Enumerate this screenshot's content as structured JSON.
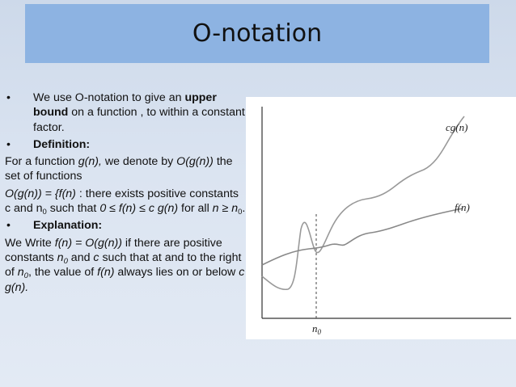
{
  "slide": {
    "title": "O-notation"
  },
  "content": {
    "bullet1": {
      "marker": "•",
      "t1": "We use O-notation to give an ",
      "bold": "upper bound",
      "t2": " on a function , to within a constant factor."
    },
    "bullet2": {
      "marker": "•",
      "label": "Definition:"
    },
    "def_line": {
      "t1": "For a function ",
      "gn": "g(n),",
      "t2": " we denote by ",
      "ogn": "O(g(n))",
      "t3": " the set of functions"
    },
    "set_def": {
      "lhs": "O(g(n)) = {f(n)",
      "t1": " : there exists positive constants c and n",
      "sub0": "0",
      "t2": " such that ",
      "ineq": "0 ≤ f(n)  ≤  c g(n)",
      "t3": " for all ",
      "n_ge": "n ≥ n",
      "sub0b": "0",
      "t4": "."
    },
    "bullet3": {
      "marker": "•",
      "label": "Explanation:"
    },
    "explanation": {
      "t1": "We Write ",
      "eq": "f(n) = O(g(n))",
      "t2": " if there are positive constants ",
      "n0": "n",
      "n0sub": "0",
      "t3": " and ",
      "c": "c",
      "t4": " such that at and to the right of ",
      "n0b": "n",
      "n0bsub": "0",
      "t5": ", the value of ",
      "fn": "f(n)",
      "t6": " always lies on or below ",
      "cgn": "c g(n).",
      "t7": ""
    }
  },
  "graph": {
    "label_cg": "cg(n)",
    "label_f": "f(n)",
    "label_n0": "n",
    "label_n0_sub": "0"
  }
}
